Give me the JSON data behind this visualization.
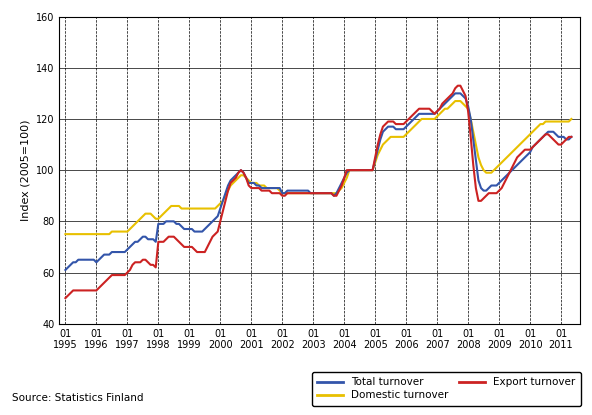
{
  "ylabel": "Index (2005=100)",
  "ylim": [
    40,
    160
  ],
  "yticks": [
    40,
    60,
    80,
    100,
    120,
    140,
    160
  ],
  "source_text": "Source: Statistics Finland",
  "legend_entries": [
    "Total turnover",
    "Domestic turnover",
    "Export turnover"
  ],
  "colors": {
    "total": "#3355aa",
    "domestic": "#e8c000",
    "export": "#cc2222"
  },
  "background_color": "#ffffff",
  "total_turnover": [
    61,
    62,
    63,
    64,
    64,
    65,
    65,
    65,
    65,
    65,
    65,
    65,
    64,
    65,
    66,
    67,
    67,
    67,
    68,
    68,
    68,
    68,
    68,
    68,
    69,
    70,
    71,
    72,
    72,
    73,
    74,
    74,
    73,
    73,
    73,
    72,
    79,
    79,
    79,
    80,
    80,
    80,
    80,
    79,
    79,
    78,
    77,
    77,
    77,
    77,
    76,
    76,
    76,
    76,
    77,
    78,
    79,
    80,
    81,
    82,
    85,
    88,
    91,
    94,
    96,
    97,
    98,
    99,
    100,
    99,
    97,
    95,
    95,
    95,
    94,
    94,
    93,
    93,
    93,
    93,
    93,
    93,
    93,
    93,
    91,
    91,
    92,
    92,
    92,
    92,
    92,
    92,
    92,
    92,
    92,
    91,
    91,
    91,
    91,
    91,
    91,
    91,
    91,
    91,
    90,
    91,
    93,
    95,
    97,
    99,
    100,
    100,
    100,
    100,
    100,
    100,
    100,
    100,
    100,
    100,
    104,
    108,
    112,
    115,
    116,
    117,
    117,
    117,
    116,
    116,
    116,
    116,
    117,
    118,
    119,
    120,
    121,
    122,
    122,
    122,
    122,
    122,
    122,
    122,
    123,
    124,
    125,
    126,
    127,
    128,
    129,
    130,
    130,
    130,
    129,
    128,
    125,
    120,
    112,
    104,
    96,
    93,
    92,
    92,
    93,
    94,
    94,
    94,
    95,
    96,
    97,
    98,
    99,
    100,
    101,
    102,
    103,
    104,
    105,
    106,
    107,
    109,
    110,
    111,
    112,
    113,
    114,
    115,
    115,
    115,
    114,
    113,
    113,
    113,
    112,
    112,
    113
  ],
  "domestic_turnover": [
    75,
    75,
    75,
    75,
    75,
    75,
    75,
    75,
    75,
    75,
    75,
    75,
    75,
    75,
    75,
    75,
    75,
    75,
    76,
    76,
    76,
    76,
    76,
    76,
    76,
    77,
    78,
    79,
    80,
    81,
    82,
    83,
    83,
    83,
    82,
    81,
    81,
    82,
    83,
    84,
    85,
    86,
    86,
    86,
    86,
    85,
    85,
    85,
    85,
    85,
    85,
    85,
    85,
    85,
    85,
    85,
    85,
    85,
    85,
    86,
    87,
    88,
    90,
    92,
    94,
    95,
    96,
    97,
    98,
    98,
    97,
    96,
    95,
    95,
    95,
    94,
    94,
    94,
    93,
    93,
    93,
    93,
    93,
    92,
    91,
    91,
    91,
    91,
    91,
    91,
    91,
    91,
    91,
    91,
    91,
    91,
    91,
    91,
    91,
    91,
    91,
    91,
    91,
    91,
    91,
    91,
    92,
    93,
    95,
    97,
    100,
    100,
    100,
    100,
    100,
    100,
    100,
    100,
    100,
    100,
    103,
    106,
    108,
    110,
    111,
    112,
    113,
    113,
    113,
    113,
    113,
    113,
    114,
    115,
    116,
    117,
    118,
    119,
    120,
    120,
    120,
    120,
    120,
    120,
    121,
    122,
    123,
    124,
    124,
    125,
    126,
    127,
    127,
    127,
    126,
    125,
    124,
    120,
    115,
    110,
    105,
    102,
    100,
    99,
    99,
    99,
    100,
    101,
    102,
    103,
    104,
    105,
    106,
    107,
    108,
    109,
    110,
    111,
    112,
    113,
    114,
    115,
    116,
    117,
    118,
    118,
    119,
    119,
    119,
    119,
    119,
    119,
    119,
    119,
    119,
    119,
    120
  ],
  "export_turnover": [
    50,
    51,
    52,
    53,
    53,
    53,
    53,
    53,
    53,
    53,
    53,
    53,
    53,
    54,
    55,
    56,
    57,
    58,
    59,
    59,
    59,
    59,
    59,
    59,
    60,
    61,
    63,
    64,
    64,
    64,
    65,
    65,
    64,
    63,
    63,
    62,
    72,
    72,
    72,
    73,
    74,
    74,
    74,
    73,
    72,
    71,
    70,
    70,
    70,
    70,
    69,
    68,
    68,
    68,
    68,
    70,
    72,
    74,
    75,
    76,
    80,
    84,
    88,
    92,
    95,
    96,
    97,
    99,
    100,
    99,
    97,
    94,
    93,
    93,
    93,
    93,
    92,
    92,
    92,
    92,
    91,
    91,
    91,
    91,
    90,
    90,
    91,
    91,
    91,
    91,
    91,
    91,
    91,
    91,
    91,
    91,
    91,
    91,
    91,
    91,
    91,
    91,
    91,
    91,
    90,
    90,
    92,
    94,
    97,
    100,
    100,
    100,
    100,
    100,
    100,
    100,
    100,
    100,
    100,
    100,
    105,
    110,
    114,
    117,
    118,
    119,
    119,
    119,
    118,
    118,
    118,
    118,
    119,
    120,
    121,
    122,
    123,
    124,
    124,
    124,
    124,
    124,
    123,
    122,
    123,
    124,
    126,
    127,
    128,
    129,
    130,
    132,
    133,
    133,
    131,
    129,
    123,
    113,
    102,
    93,
    88,
    88,
    89,
    90,
    91,
    91,
    91,
    91,
    92,
    93,
    95,
    97,
    99,
    101,
    103,
    105,
    106,
    107,
    108,
    108,
    108,
    109,
    110,
    111,
    112,
    113,
    114,
    114,
    113,
    112,
    111,
    110,
    110,
    111,
    112,
    113,
    113
  ]
}
